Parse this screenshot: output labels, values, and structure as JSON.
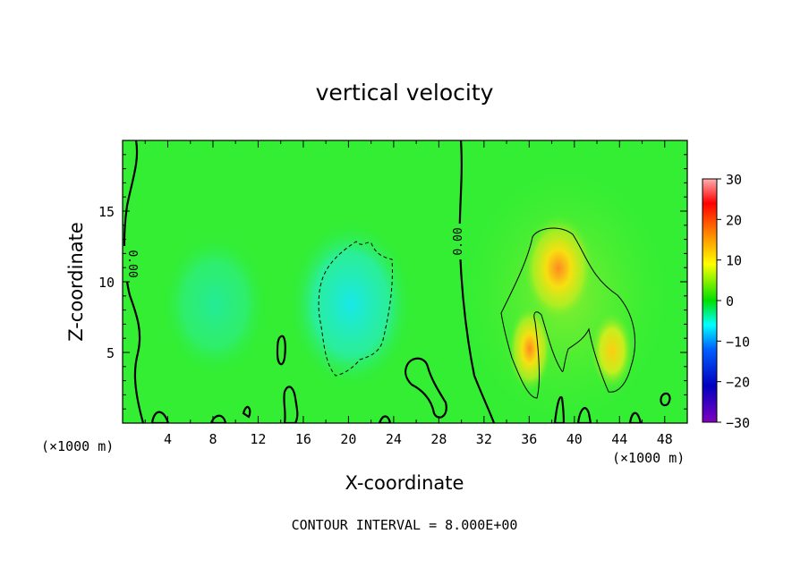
{
  "chart_data": {
    "type": "heatmap",
    "title": "vertical velocity",
    "xlabel": "X-coordinate",
    "ylabel": "Z-coordinate",
    "x_unit": "(×1000 m)",
    "xlim": [
      0,
      50
    ],
    "ylim": [
      0,
      20
    ],
    "x_ticks": [
      4,
      8,
      12,
      16,
      20,
      24,
      28,
      32,
      36,
      40,
      44,
      48
    ],
    "y_ticks": [
      5,
      10,
      15
    ],
    "colorbar": {
      "min": -30,
      "max": 30,
      "ticks": [
        30,
        20,
        10,
        0,
        -10,
        -20,
        -30
      ],
      "colors": [
        "#ffb0b0",
        "#ff0000",
        "#ff8000",
        "#ffff00",
        "#00e000",
        "#00ffff",
        "#0060ff",
        "#0000c0",
        "#8000c0"
      ]
    },
    "background_color": "#33ee33",
    "features": [
      {
        "kind": "downdraft",
        "x": 20,
        "z": 8,
        "value": -10,
        "color": "#22eedd"
      },
      {
        "kind": "updraft",
        "x": 38.5,
        "z": 10.5,
        "value": 14,
        "color": "#ff9922"
      },
      {
        "kind": "updraft",
        "x": 36,
        "z": 5,
        "value": 13,
        "color": "#ff9922"
      },
      {
        "kind": "updraft",
        "x": 43,
        "z": 5,
        "value": 11,
        "color": "#ffcc00"
      }
    ],
    "contour_labels": [
      "0.00",
      "0.00"
    ],
    "contour_interval": "CONTOUR INTERVAL = 8.000E+00"
  }
}
